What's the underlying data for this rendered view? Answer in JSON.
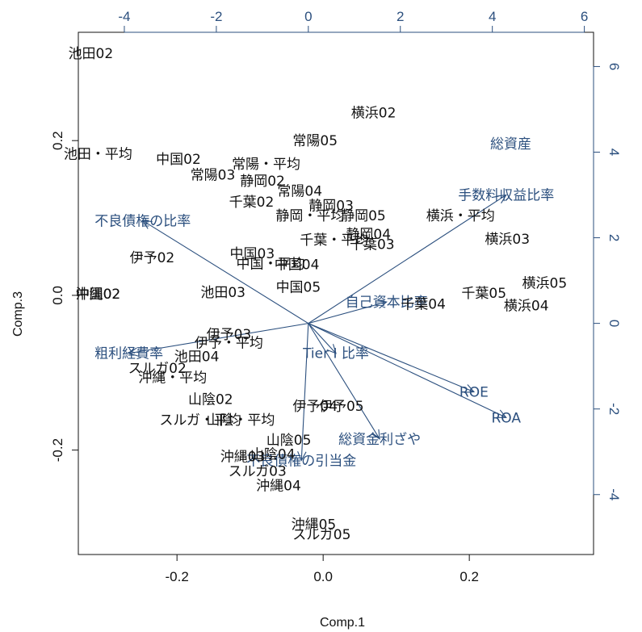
{
  "chart_data": {
    "type": "scatter",
    "subtype": "biplot",
    "xlabel": "Comp.1",
    "ylabel": "Comp.3",
    "xlim": [
      -0.335,
      0.37
    ],
    "ylim": [
      -0.335,
      0.34
    ],
    "top_xlim": [
      -5.0,
      6.2
    ],
    "right_ylim": [
      -5.4,
      6.8
    ],
    "bottom_ticks": [
      -0.2,
      0.0,
      0.2
    ],
    "bottom_tick_labels": [
      "-0.2",
      "0.0",
      "0.2"
    ],
    "left_ticks": [
      -0.2,
      0.0,
      0.2
    ],
    "left_tick_labels": [
      "-0.2",
      "0.0",
      "0.2"
    ],
    "top_ticks": [
      -4,
      -2,
      0,
      2,
      4,
      6
    ],
    "top_tick_labels": [
      "-4",
      "-2",
      "0",
      "2",
      "4",
      "6"
    ],
    "right_ticks": [
      -4,
      -2,
      0,
      2,
      4,
      6
    ],
    "right_tick_labels": [
      "-4",
      "-2",
      "0",
      "2",
      "4",
      "6"
    ],
    "colors": {
      "observation": "#111111",
      "variable": "#2b4f7e",
      "axis": "#111111"
    },
    "observations": [
      {
        "label": "池田02",
        "x": -0.318,
        "y": 0.313
      },
      {
        "label": "横浜02",
        "x": 0.069,
        "y": 0.236
      },
      {
        "label": "常陽05",
        "x": -0.011,
        "y": 0.2
      },
      {
        "label": "池田・平均",
        "x": -0.308,
        "y": 0.183
      },
      {
        "label": "中国02",
        "x": -0.198,
        "y": 0.176
      },
      {
        "label": "常陽・平均",
        "x": -0.078,
        "y": 0.17
      },
      {
        "label": "常陽03",
        "x": -0.151,
        "y": 0.156
      },
      {
        "label": "静岡02",
        "x": -0.083,
        "y": 0.148
      },
      {
        "label": "常陽04",
        "x": -0.032,
        "y": 0.135
      },
      {
        "label": "千葉02",
        "x": -0.098,
        "y": 0.121
      },
      {
        "label": "静岡03",
        "x": 0.011,
        "y": 0.116
      },
      {
        "label": "静岡・平均",
        "x": -0.018,
        "y": 0.103
      },
      {
        "label": "静岡05",
        "x": 0.055,
        "y": 0.103
      },
      {
        "label": "横浜・平均",
        "x": 0.188,
        "y": 0.103
      },
      {
        "label": "千葉・平均",
        "x": 0.015,
        "y": 0.072
      },
      {
        "label": "静岡04",
        "x": 0.062,
        "y": 0.079
      },
      {
        "label": "千葉03",
        "x": 0.067,
        "y": 0.066
      },
      {
        "label": "横浜03",
        "x": 0.252,
        "y": 0.073
      },
      {
        "label": "伊予02",
        "x": -0.234,
        "y": 0.049
      },
      {
        "label": "中国03",
        "x": -0.097,
        "y": 0.054
      },
      {
        "label": "中国・平均",
        "x": -0.072,
        "y": 0.041
      },
      {
        "label": "中国04",
        "x": -0.036,
        "y": 0.04
      },
      {
        "label": "沖縄02",
        "x": -0.308,
        "y": 0.002
      },
      {
        "label": "中国02",
        "x": -0.308,
        "y": 0.002
      },
      {
        "label": "池田03",
        "x": -0.137,
        "y": 0.004
      },
      {
        "label": "中国05",
        "x": -0.034,
        "y": 0.011
      },
      {
        "label": "横浜05",
        "x": 0.303,
        "y": 0.016
      },
      {
        "label": "千葉05",
        "x": 0.22,
        "y": 0.003
      },
      {
        "label": "千葉04",
        "x": 0.137,
        "y": -0.011
      },
      {
        "label": "横浜04",
        "x": 0.278,
        "y": -0.013
      },
      {
        "label": "伊予03",
        "x": -0.129,
        "y": -0.05
      },
      {
        "label": "伊予・平均",
        "x": -0.129,
        "y": -0.061
      },
      {
        "label": "池田04",
        "x": -0.173,
        "y": -0.079
      },
      {
        "label": "スルガ02",
        "x": -0.227,
        "y": -0.094
      },
      {
        "label": "沖縄・平均",
        "x": -0.206,
        "y": -0.106
      },
      {
        "label": "山陰02",
        "x": -0.154,
        "y": -0.134
      },
      {
        "label": "伊予04",
        "x": -0.011,
        "y": -0.143
      },
      {
        "label": "伊予05",
        "x": 0.025,
        "y": -0.143
      },
      {
        "label": "スルガ・平均",
        "x": -0.168,
        "y": -0.161
      },
      {
        "label": "山陰・平均",
        "x": -0.113,
        "y": -0.161
      },
      {
        "label": "山陰05",
        "x": -0.047,
        "y": -0.187
      },
      {
        "label": "沖縄03",
        "x": -0.11,
        "y": -0.208
      },
      {
        "label": "山陰04",
        "x": -0.069,
        "y": -0.205
      },
      {
        "label": "スルガ03",
        "x": -0.09,
        "y": -0.227
      },
      {
        "label": "沖縄04",
        "x": -0.061,
        "y": -0.246
      },
      {
        "label": "沖縄05",
        "x": -0.013,
        "y": -0.296
      },
      {
        "label": "スルガ05",
        "x": -0.002,
        "y": -0.309
      }
    ],
    "variables": [
      {
        "label": "総資産",
        "x": 4.4,
        "y": 4.2,
        "arrow": false
      },
      {
        "label": "手数料収益比率",
        "x": 4.3,
        "y": 3.0,
        "arrow": true
      },
      {
        "label": "不良債権の比率",
        "x": -3.6,
        "y": 2.4,
        "arrow": true
      },
      {
        "label": "自己資本比率",
        "x": 1.7,
        "y": 0.5,
        "arrow": true
      },
      {
        "label": "粗利経費率",
        "x": -3.9,
        "y": -0.7,
        "arrow": true
      },
      {
        "label": "Tier I 比率",
        "x": 0.6,
        "y": -0.7,
        "arrow": true
      },
      {
        "label": "ROE",
        "x": 3.6,
        "y": -1.6,
        "arrow": true
      },
      {
        "label": "ROA",
        "x": 4.3,
        "y": -2.2,
        "arrow": true
      },
      {
        "label": "総資金利ざや",
        "x": 1.55,
        "y": -2.7,
        "arrow": true
      },
      {
        "label": "不良債権の引当金",
        "x": -0.15,
        "y": -3.2,
        "arrow": true
      }
    ]
  }
}
